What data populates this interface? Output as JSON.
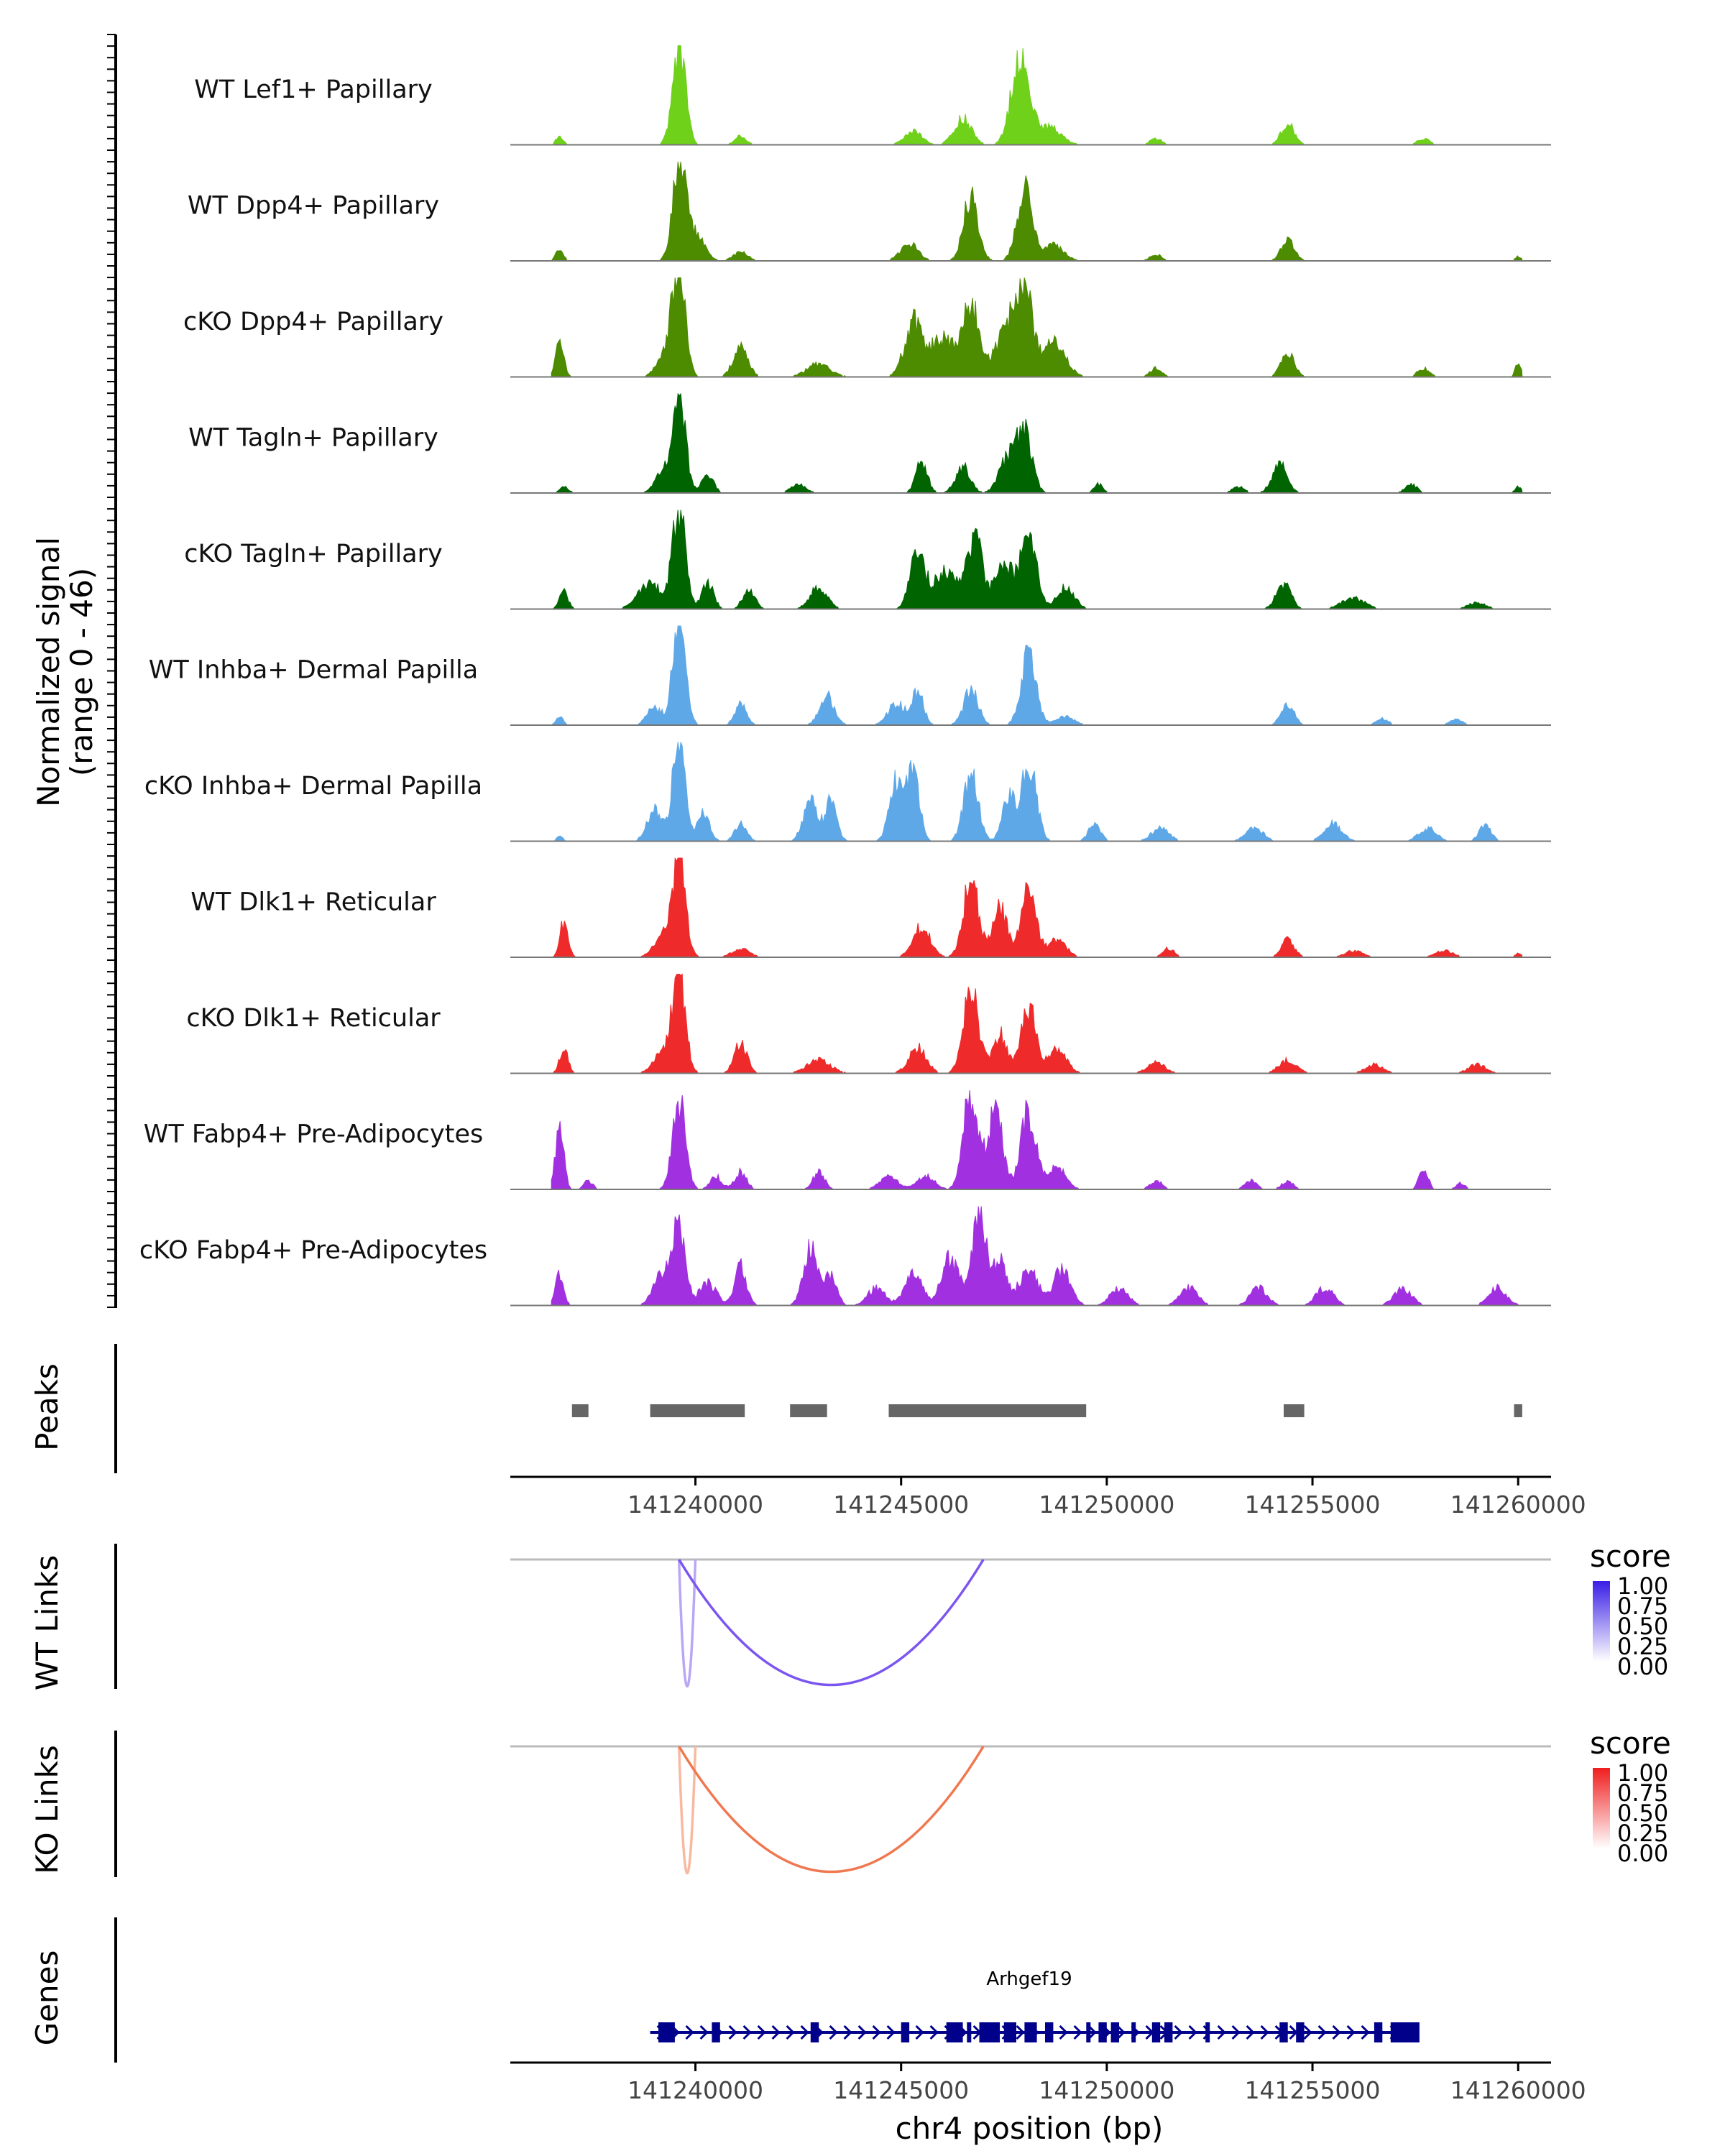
{
  "chart_data": {
    "type": "area",
    "title": "",
    "xlabel": "chr4 position (bp)",
    "xlim": [
      141235500,
      141260800
    ],
    "x_ticks": [
      "141240000",
      "141245000",
      "141250000",
      "141255000",
      "141260000"
    ],
    "x_tick_values": [
      141240000,
      141245000,
      141250000,
      141255000,
      141260000
    ],
    "coverage": {
      "ylabel_line1": "Normalized signal",
      "ylabel_line2": "(range 0 - 46)",
      "ylim": [
        0,
        46
      ],
      "tracks": [
        {
          "name": "WT Lef1+ Papillary",
          "color": "#6fd11a",
          "peaks": [
            [
              141236700,
              4,
              120
            ],
            [
              141239600,
              46,
              220
            ],
            [
              141241100,
              4,
              200
            ],
            [
              141245300,
              6,
              300
            ],
            [
              141246500,
              12,
              300
            ],
            [
              141247900,
              42,
              300
            ],
            [
              141248600,
              8,
              400
            ],
            [
              141251200,
              3,
              200
            ],
            [
              141254400,
              10,
              220
            ],
            [
              141257700,
              3,
              200
            ]
          ]
        },
        {
          "name": "WT Dpp4+ Papillary",
          "color": "#4d8b00",
          "peaks": [
            [
              141236700,
              6,
              120
            ],
            [
              141239600,
              46,
              220
            ],
            [
              141240000,
              12,
              300
            ],
            [
              141241100,
              4,
              250
            ],
            [
              141245200,
              8,
              300
            ],
            [
              141246700,
              30,
              250
            ],
            [
              141248000,
              32,
              260
            ],
            [
              141248700,
              7,
              350
            ],
            [
              141251200,
              3,
              200
            ],
            [
              141254400,
              10,
              220
            ],
            [
              141260000,
              2,
              100
            ]
          ]
        },
        {
          "name": "cKO Dpp4+ Papillary",
          "color": "#4d8b00",
          "peaks": [
            [
              141236700,
              16,
              140
            ],
            [
              141239600,
              46,
              220
            ],
            [
              141239300,
              12,
              300
            ],
            [
              141241100,
              14,
              250
            ],
            [
              141243000,
              6,
              400
            ],
            [
              141245300,
              26,
              300
            ],
            [
              141246000,
              18,
              400
            ],
            [
              141246700,
              32,
              280
            ],
            [
              141247600,
              24,
              400
            ],
            [
              141248000,
              36,
              260
            ],
            [
              141248700,
              16,
              400
            ],
            [
              141251200,
              4,
              200
            ],
            [
              141254400,
              12,
              220
            ],
            [
              141257700,
              4,
              200
            ],
            [
              141260000,
              6,
              100
            ]
          ]
        },
        {
          "name": "WT Tagln+ Papillary",
          "color": "#006400",
          "peaks": [
            [
              141236800,
              3,
              150
            ],
            [
              141239600,
              46,
              220
            ],
            [
              141239200,
              10,
              250
            ],
            [
              141240300,
              8,
              200
            ],
            [
              141242500,
              4,
              250
            ],
            [
              141245500,
              14,
              200
            ],
            [
              141246500,
              12,
              250
            ],
            [
              141247600,
              16,
              300
            ],
            [
              141248000,
              26,
              260
            ],
            [
              141249800,
              4,
              150
            ],
            [
              141253200,
              3,
              200
            ],
            [
              141254200,
              14,
              250
            ],
            [
              141257400,
              4,
              200
            ],
            [
              141260000,
              3,
              100
            ]
          ]
        },
        {
          "name": "cKO Tagln+ Papillary",
          "color": "#006400",
          "peaks": [
            [
              141236800,
              8,
              150
            ],
            [
              141239600,
              46,
              220
            ],
            [
              141238900,
              12,
              400
            ],
            [
              141240300,
              12,
              200
            ],
            [
              141241300,
              10,
              200
            ],
            [
              141243000,
              10,
              300
            ],
            [
              141245400,
              26,
              250
            ],
            [
              141246100,
              18,
              400
            ],
            [
              141246800,
              34,
              250
            ],
            [
              141247500,
              22,
              300
            ],
            [
              141248100,
              36,
              260
            ],
            [
              141249000,
              10,
              300
            ],
            [
              141254300,
              12,
              250
            ],
            [
              141256000,
              5,
              400
            ],
            [
              141259000,
              3,
              300
            ]
          ]
        },
        {
          "name": "WT Inhba+ Dermal Papilla",
          "color": "#5fa8e8",
          "peaks": [
            [
              141236700,
              4,
              120
            ],
            [
              141239600,
              46,
              220
            ],
            [
              141239000,
              8,
              250
            ],
            [
              141241100,
              10,
              200
            ],
            [
              141243200,
              14,
              250
            ],
            [
              141244900,
              10,
              300
            ],
            [
              141245400,
              16,
              200
            ],
            [
              141246700,
              16,
              250
            ],
            [
              141248100,
              32,
              260
            ],
            [
              141249000,
              4,
              300
            ],
            [
              141254400,
              10,
              220
            ],
            [
              141256700,
              3,
              200
            ],
            [
              141258500,
              3,
              200
            ]
          ]
        },
        {
          "name": "cKO Inhba+ Dermal Papilla",
          "color": "#5fa8e8",
          "peaks": [
            [
              141236700,
              2,
              120
            ],
            [
              141239600,
              46,
              220
            ],
            [
              141239000,
              14,
              250
            ],
            [
              141240200,
              14,
              200
            ],
            [
              141241100,
              8,
              200
            ],
            [
              141242800,
              18,
              250
            ],
            [
              141243300,
              18,
              200
            ],
            [
              141244900,
              28,
              250
            ],
            [
              141245300,
              32,
              200
            ],
            [
              141246700,
              30,
              250
            ],
            [
              141248100,
              36,
              260
            ],
            [
              141247600,
              22,
              200
            ],
            [
              141249700,
              8,
              200
            ],
            [
              141251300,
              6,
              300
            ],
            [
              141253600,
              6,
              300
            ],
            [
              141255500,
              8,
              300
            ],
            [
              141257800,
              6,
              300
            ],
            [
              141259200,
              8,
              200
            ]
          ]
        },
        {
          "name": "WT Dlk1+ Reticular",
          "color": "#ee2a2a",
          "peaks": [
            [
              141236800,
              16,
              140
            ],
            [
              141239600,
              46,
              220
            ],
            [
              141239200,
              10,
              300
            ],
            [
              141241100,
              4,
              300
            ],
            [
              141245500,
              14,
              300
            ],
            [
              141246700,
              36,
              260
            ],
            [
              141247400,
              24,
              250
            ],
            [
              141248100,
              30,
              260
            ],
            [
              141248800,
              8,
              300
            ],
            [
              141251500,
              4,
              200
            ],
            [
              141254400,
              8,
              220
            ],
            [
              141256000,
              3,
              300
            ],
            [
              141258200,
              3,
              300
            ],
            [
              141260000,
              2,
              100
            ]
          ]
        },
        {
          "name": "cKO Dlk1+ Reticular",
          "color": "#ee2a2a",
          "peaks": [
            [
              141236800,
              12,
              140
            ],
            [
              141239600,
              46,
              220
            ],
            [
              141239200,
              10,
              300
            ],
            [
              141241100,
              14,
              220
            ],
            [
              141243000,
              6,
              400
            ],
            [
              141245400,
              12,
              300
            ],
            [
              141246700,
              38,
              260
            ],
            [
              141247400,
              18,
              250
            ],
            [
              141248100,
              30,
              260
            ],
            [
              141248800,
              12,
              300
            ],
            [
              141251200,
              5,
              300
            ],
            [
              141254400,
              6,
              300
            ],
            [
              141256500,
              4,
              300
            ],
            [
              141259000,
              4,
              300
            ]
          ]
        },
        {
          "name": "WT Fabp4+ Pre-Adipocytes",
          "color": "#a130e0",
          "peaks": [
            [
              141236700,
              30,
              140
            ],
            [
              141237400,
              4,
              150
            ],
            [
              141239600,
              40,
              220
            ],
            [
              141240500,
              6,
              200
            ],
            [
              141241100,
              8,
              200
            ],
            [
              141243000,
              8,
              200
            ],
            [
              141244700,
              6,
              300
            ],
            [
              141245600,
              6,
              300
            ],
            [
              141246700,
              46,
              250
            ],
            [
              141247300,
              36,
              250
            ],
            [
              141248100,
              36,
              260
            ],
            [
              141248800,
              10,
              300
            ],
            [
              141251200,
              4,
              200
            ],
            [
              141253500,
              4,
              200
            ],
            [
              141254400,
              4,
              200
            ],
            [
              141257700,
              10,
              150
            ],
            [
              141258600,
              3,
              150
            ]
          ]
        },
        {
          "name": "cKO Fabp4+ Pre-Adipocytes",
          "color": "#a130e0",
          "peaks": [
            [
              141236700,
              14,
              140
            ],
            [
              141239600,
              36,
              220
            ],
            [
              141239200,
              14,
              300
            ],
            [
              141240300,
              10,
              300
            ],
            [
              141241100,
              18,
              200
            ],
            [
              141242800,
              26,
              250
            ],
            [
              141243300,
              14,
              200
            ],
            [
              141244400,
              8,
              300
            ],
            [
              141245300,
              14,
              300
            ],
            [
              141246200,
              22,
              300
            ],
            [
              141246900,
              46,
              220
            ],
            [
              141247400,
              22,
              250
            ],
            [
              141248100,
              18,
              300
            ],
            [
              141248900,
              16,
              300
            ],
            [
              141250300,
              8,
              300
            ],
            [
              141252000,
              8,
              300
            ],
            [
              141253700,
              8,
              300
            ],
            [
              141255300,
              8,
              300
            ],
            [
              141257200,
              8,
              300
            ],
            [
              141259500,
              8,
              300
            ]
          ]
        }
      ]
    },
    "peaks": {
      "label": "Peaks",
      "color": "#666666",
      "regions": [
        [
          141237000,
          141237400
        ],
        [
          141238900,
          141241200
        ],
        [
          141242300,
          141243200
        ],
        [
          141244700,
          141249500
        ],
        [
          141254300,
          141254800
        ],
        [
          141259900,
          141260100
        ]
      ]
    },
    "links": [
      {
        "label": "WT Links",
        "color": "#7b55f0",
        "legend": {
          "title": "score",
          "ticks": [
            "1.00",
            "0.75",
            "0.50",
            "0.25",
            "0.00"
          ],
          "high": "#3a1ee6",
          "low": "#ffffff"
        },
        "arcs": [
          {
            "start": 141239600,
            "end": 141240000,
            "depth": 0.93
          },
          {
            "start": 141239600,
            "end": 141247000,
            "depth": 0.92
          }
        ]
      },
      {
        "label": "KO Links",
        "color": "#f07850",
        "legend": {
          "title": "score",
          "ticks": [
            "1.00",
            "0.75",
            "0.50",
            "0.25",
            "0.00"
          ],
          "high": "#f01e1e",
          "low": "#ffffff"
        },
        "arcs": [
          {
            "start": 141239600,
            "end": 141240000,
            "depth": 0.93
          },
          {
            "start": 141239600,
            "end": 141247000,
            "depth": 0.92
          }
        ]
      }
    ],
    "genes": {
      "label": "Genes",
      "color": "#00008b",
      "gene_name": "Arhgef19",
      "start": 141239000,
      "end": 141257500,
      "exons": [
        [
          141239100,
          141239500
        ],
        [
          141240400,
          141240600
        ],
        [
          141242800,
          141243000
        ],
        [
          141245000,
          141245200
        ],
        [
          141246100,
          141246500
        ],
        [
          141246600,
          141246700
        ],
        [
          141246900,
          141247400
        ],
        [
          141247500,
          141247800
        ],
        [
          141248000,
          141248300
        ],
        [
          141248500,
          141248700
        ],
        [
          141249500,
          141249600
        ],
        [
          141249800,
          141250000
        ],
        [
          141250100,
          141250300
        ],
        [
          141250600,
          141250700
        ],
        [
          141251100,
          141251300
        ],
        [
          141251400,
          141251600
        ],
        [
          141252400,
          141252500
        ],
        [
          141254200,
          141254400
        ],
        [
          141254600,
          141254800
        ],
        [
          141256500,
          141256700
        ],
        [
          141256900,
          141257200
        ],
        [
          141257200,
          141257600
        ]
      ]
    }
  }
}
